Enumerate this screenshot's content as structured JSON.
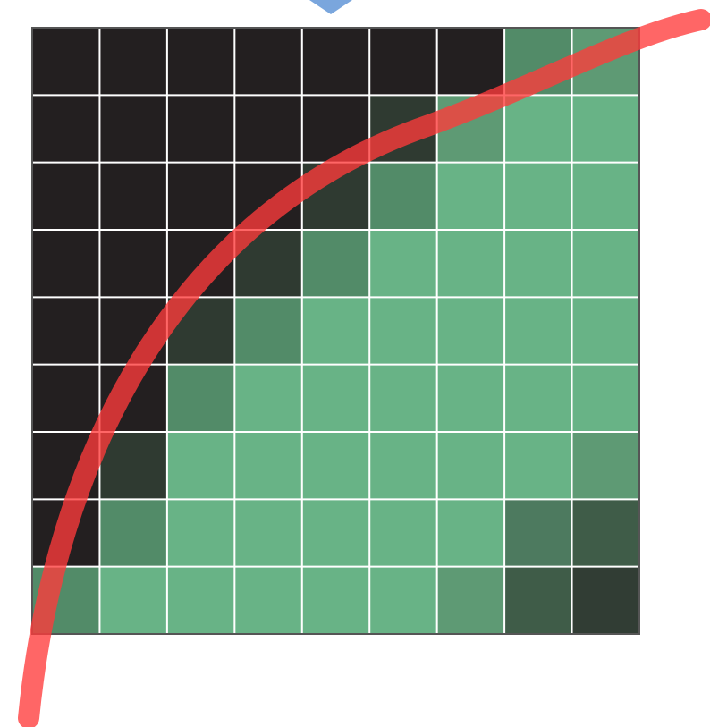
{
  "grid": {
    "rows": 9,
    "cols": 9,
    "cells": [
      [
        "dark",
        "dark",
        "dark",
        "dark",
        "dark",
        "dark",
        "dark",
        "edge_mid",
        "edge_light"
      ],
      [
        "dark",
        "dark",
        "dark",
        "dark",
        "dark",
        "edge_dark",
        "edge_light",
        "full",
        "full"
      ],
      [
        "dark",
        "dark",
        "dark",
        "dark",
        "edge_dark",
        "edge_mid",
        "full",
        "full",
        "full"
      ],
      [
        "dark",
        "dark",
        "dark",
        "edge_dark",
        "edge_mid",
        "full",
        "full",
        "full",
        "full"
      ],
      [
        "dark",
        "dark",
        "edge_dark",
        "edge_mid",
        "full",
        "full",
        "full",
        "full",
        "full"
      ],
      [
        "dark",
        "dark",
        "edge_mid",
        "full",
        "full",
        "full",
        "full",
        "full",
        "full"
      ],
      [
        "dark",
        "edge_dark",
        "full",
        "full",
        "full",
        "full",
        "full",
        "full",
        "edge_light"
      ],
      [
        "dark",
        "edge_mid",
        "full",
        "full",
        "full",
        "full",
        "full",
        "shade_mid",
        "shade_dark"
      ],
      [
        "edge_mid",
        "full",
        "full",
        "full",
        "full",
        "full",
        "edge_light",
        "shade_dark",
        "shade_darker"
      ]
    ]
  },
  "colors": {
    "dark": "#231f20",
    "full": "#68b386",
    "edge_light": "#5e9a74",
    "edge_mid": "#528b68",
    "edge_dark": "#2f3a31",
    "shade_mid": "#4d7a5f",
    "shade_dark": "#3f5c48",
    "shade_darker": "#313d34",
    "grid_line": "#ffffff",
    "border": "#555555",
    "curve": "#ff3b3b",
    "arrow": "#7aa6dd"
  },
  "icons": {
    "top_marker": "down-arrow-icon"
  }
}
